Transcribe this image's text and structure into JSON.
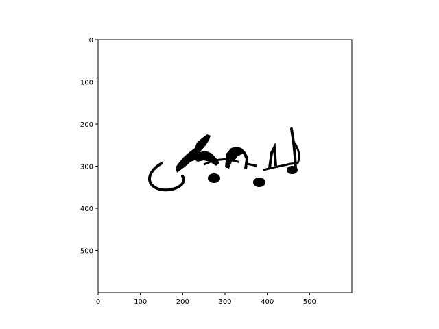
{
  "chart_data": {
    "type": "image",
    "title": "",
    "xlabel": "",
    "ylabel": "",
    "xlim": [
      0,
      600
    ],
    "ylim": [
      600,
      0
    ],
    "y_inverted": true,
    "grid": false,
    "xticks": [
      0,
      100,
      200,
      300,
      400,
      500
    ],
    "yticks": [
      0,
      100,
      200,
      300,
      400,
      500
    ],
    "image_content": "black ink drawing of cursive-like music note glyphs on white background",
    "colors": {
      "background": "#ffffff",
      "ink": "#000000",
      "axis": "#000000"
    }
  }
}
